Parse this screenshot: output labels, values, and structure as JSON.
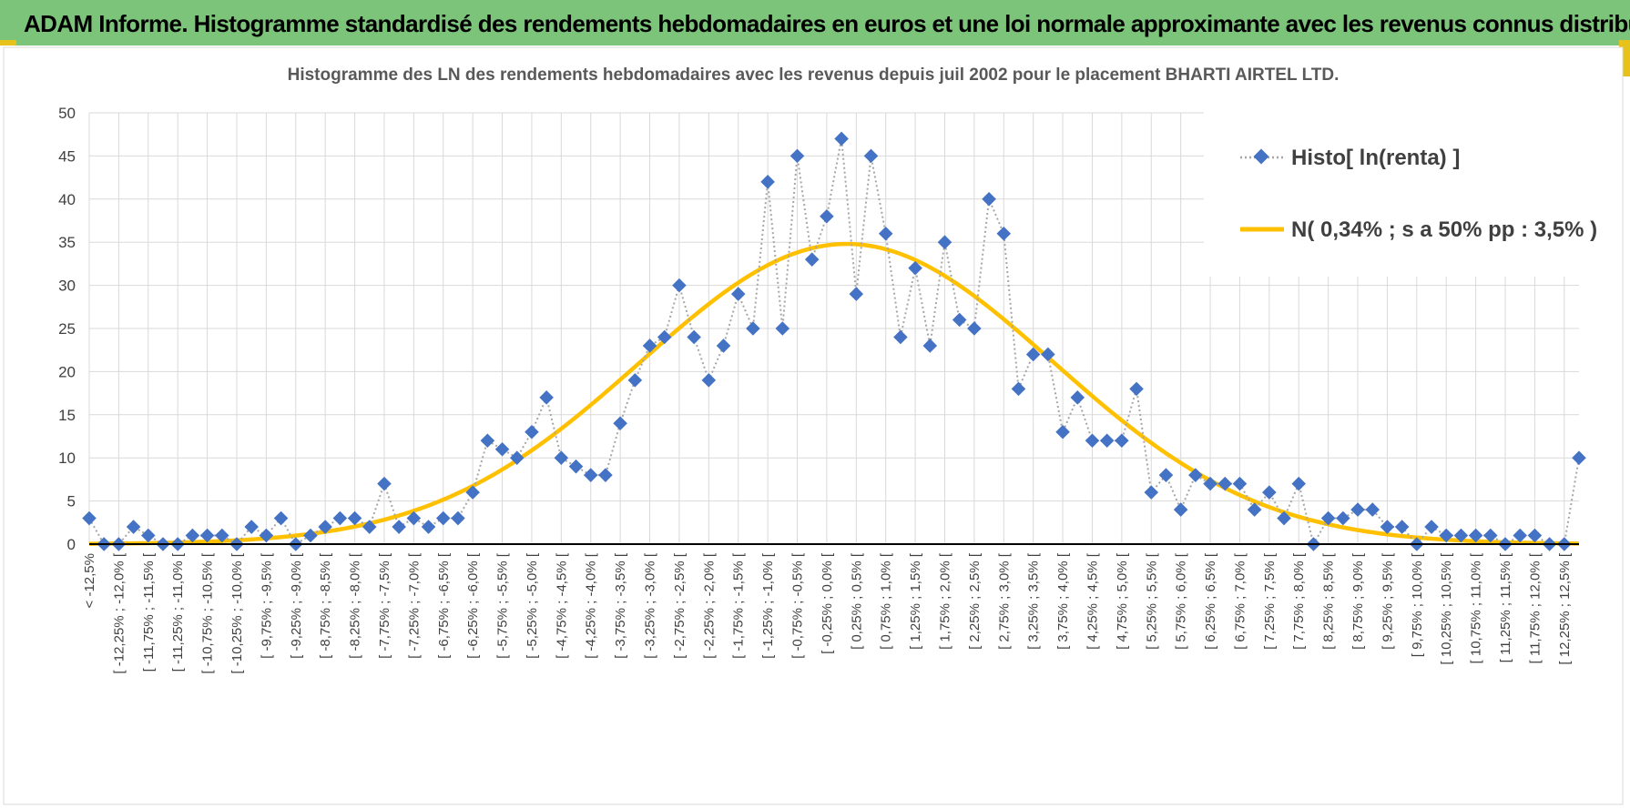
{
  "banner": {
    "title": "ADAM Informe. Histogramme standardisé des rendements hebdomadaires en euros et une loi normale approximante avec les revenus connus distribués"
  },
  "chart_data": {
    "type": "line",
    "title": "Histogramme  des LN des rendements hebdomadaires avec les revenus depuis juil 2002 pour le placement BHARTI AIRTEL LTD.",
    "ylim": [
      0,
      50
    ],
    "yticks": [
      0,
      5,
      10,
      15,
      20,
      25,
      30,
      35,
      40,
      45,
      50
    ],
    "grid": true,
    "legend_position": "top-right",
    "categories": [
      "< -12,5%",
      "[ -12,5% ; -12,25% [",
      "[ -12,25% ; -12,0% [",
      "[ -12,0% ; -11,75% [",
      "[ -11,75% ; -11,5% [",
      "[ -11,5% ; -11,25% [",
      "[ -11,25% ; -11,0% [",
      "[ -11,0% ; -10,75% [",
      "[ -10,75% ; -10,5% [",
      "[ -10,5% ; -10,25% [",
      "[ -10,25% ; -10,0% [",
      "[ -10,0% ; -9,75% [",
      "[ -9,75% ; -9,5% [",
      "[ -9,5% ; -9,25% [",
      "[ -9,25% ; -9,0% [",
      "[ -9,0% ; -8,75% [",
      "[ -8,75% ; -8,5% [",
      "[ -8,5% ; -8,25% [",
      "[ -8,25% ; -8,0% [",
      "[ -8,0% ; -7,75% [",
      "[ -7,75% ; -7,5% [",
      "[ -7,5% ; -7,25% [",
      "[ -7,25% ; -7,0% [",
      "[ -7,0% ; -6,75% [",
      "[ -6,75% ; -6,5% [",
      "[ -6,5% ; -6,25% [",
      "[ -6,25% ; -6,0% [",
      "[ -6,0% ; -5,75% [",
      "[ -5,75% ; -5,5% [",
      "[ -5,5% ; -5,25% [",
      "[ -5,25% ; -5,0% [",
      "[ -5,0% ; -4,75% [",
      "[ -4,75% ; -4,5% [",
      "[ -4,5% ; -4,25% [",
      "[ -4,25% ; -4,0% [",
      "[ -4,0% ; -3,75% [",
      "[ -3,75% ; -3,5% [",
      "[ -3,5% ; -3,25% [",
      "[ -3,25% ; -3,0% [",
      "[ -3,0% ; -2,75% [",
      "[ -2,75% ; -2,5% [",
      "[ -2,5% ; -2,25% [",
      "[ -2,25% ; -2,0% [",
      "[ -2,0% ; -1,75% [",
      "[ -1,75% ; -1,5% [",
      "[ -1,5% ; -1,25% [",
      "[ -1,25% ; -1,0% [",
      "[ -1,0% ; -0,75% [",
      "[ -0,75% ; -0,5% [",
      "[ -0,5% ; -0,25% [",
      "[ -0,25% ; 0,0% [",
      "[ 0,0% ; 0,25% [",
      "[ 0,25% ; 0,5% [",
      "[ 0,5% ; 0,75% [",
      "[ 0,75% ; 1,0% [",
      "[ 1,0% ; 1,25% [",
      "[ 1,25% ; 1,5% [",
      "[ 1,5% ; 1,75% [",
      "[ 1,75% ; 2,0% [",
      "[ 2,0% ; 2,25% [",
      "[ 2,25% ; 2,5% [",
      "[ 2,5% ; 2,75% [",
      "[ 2,75% ; 3,0% [",
      "[ 3,0% ; 3,25% [",
      "[ 3,25% ; 3,5% [",
      "[ 3,5% ; 3,75% [",
      "[ 3,75% ; 4,0% [",
      "[ 4,0% ; 4,25% [",
      "[ 4,25% ; 4,5% [",
      "[ 4,5% ; 4,75% [",
      "[ 4,75% ; 5,0% [",
      "[ 5,0% ; 5,25% [",
      "[ 5,25% ; 5,5% [",
      "[ 5,5% ; 5,75% [",
      "[ 5,75% ; 6,0% [",
      "[ 6,0% ; 6,25% [",
      "[ 6,25% ; 6,5% [",
      "[ 6,5% ; 6,75% [",
      "[ 6,75% ; 7,0% [",
      "[ 7,0% ; 7,25% [",
      "[ 7,25% ; 7,5% [",
      "[ 7,5% ; 7,75% [",
      "[ 7,75% ; 8,0% [",
      "[ 8,0% ; 8,25% [",
      "[ 8,25% ; 8,5% [",
      "[ 8,5% ; 8,75% [",
      "[ 8,75% ; 9,0% [",
      "[ 9,0% ; 9,25% [",
      "[ 9,25% ; 9,5% [",
      "[ 9,5% ; 9,75% [",
      "[ 9,75% ; 10,0% [",
      "[ 10,0% ; 10,25% [",
      "[ 10,25% ; 10,5% [",
      "[ 10,5% ; 10,75% [",
      "[ 10,75% ; 11,0% [",
      "[ 11,0% ; 11,25% [",
      "[ 11,25% ; 11,5% [",
      "[ 11,5% ; 11,75% [",
      "[ 11,75% ; 12,0% [",
      "[ 12,0% ; 12,25% [",
      "[ 12,25% ; 12,5% [",
      "> 12,5%"
    ],
    "series": [
      {
        "name": "Histo[ ln(renta) ]",
        "style": "dotted-line-diamond-markers",
        "color": "#4472c4",
        "line_color": "#a6a6a6",
        "values": [
          3,
          0,
          0,
          2,
          1,
          0,
          0,
          1,
          1,
          1,
          0,
          2,
          1,
          3,
          0,
          1,
          2,
          3,
          3,
          2,
          7,
          2,
          3,
          2,
          3,
          3,
          6,
          12,
          11,
          10,
          13,
          17,
          10,
          9,
          8,
          8,
          14,
          19,
          23,
          24,
          30,
          24,
          19,
          23,
          29,
          25,
          42,
          25,
          45,
          33,
          38,
          47,
          29,
          45,
          36,
          24,
          32,
          23,
          35,
          26,
          25,
          40,
          36,
          18,
          22,
          22,
          13,
          17,
          12,
          12,
          12,
          18,
          6,
          8,
          4,
          8,
          7,
          7,
          7,
          4,
          6,
          3,
          7,
          0,
          3,
          3,
          4,
          4,
          2,
          2,
          0,
          2,
          1,
          1,
          1,
          1,
          0,
          1,
          1,
          0,
          0,
          10
        ]
      },
      {
        "name": "N( 0,34% ; s a 50% pp : 3,5% )",
        "style": "smooth-line",
        "color": "#ffc000",
        "mean_index": 51.36,
        "sigma_bins": 14,
        "peak": 34.8
      }
    ]
  }
}
